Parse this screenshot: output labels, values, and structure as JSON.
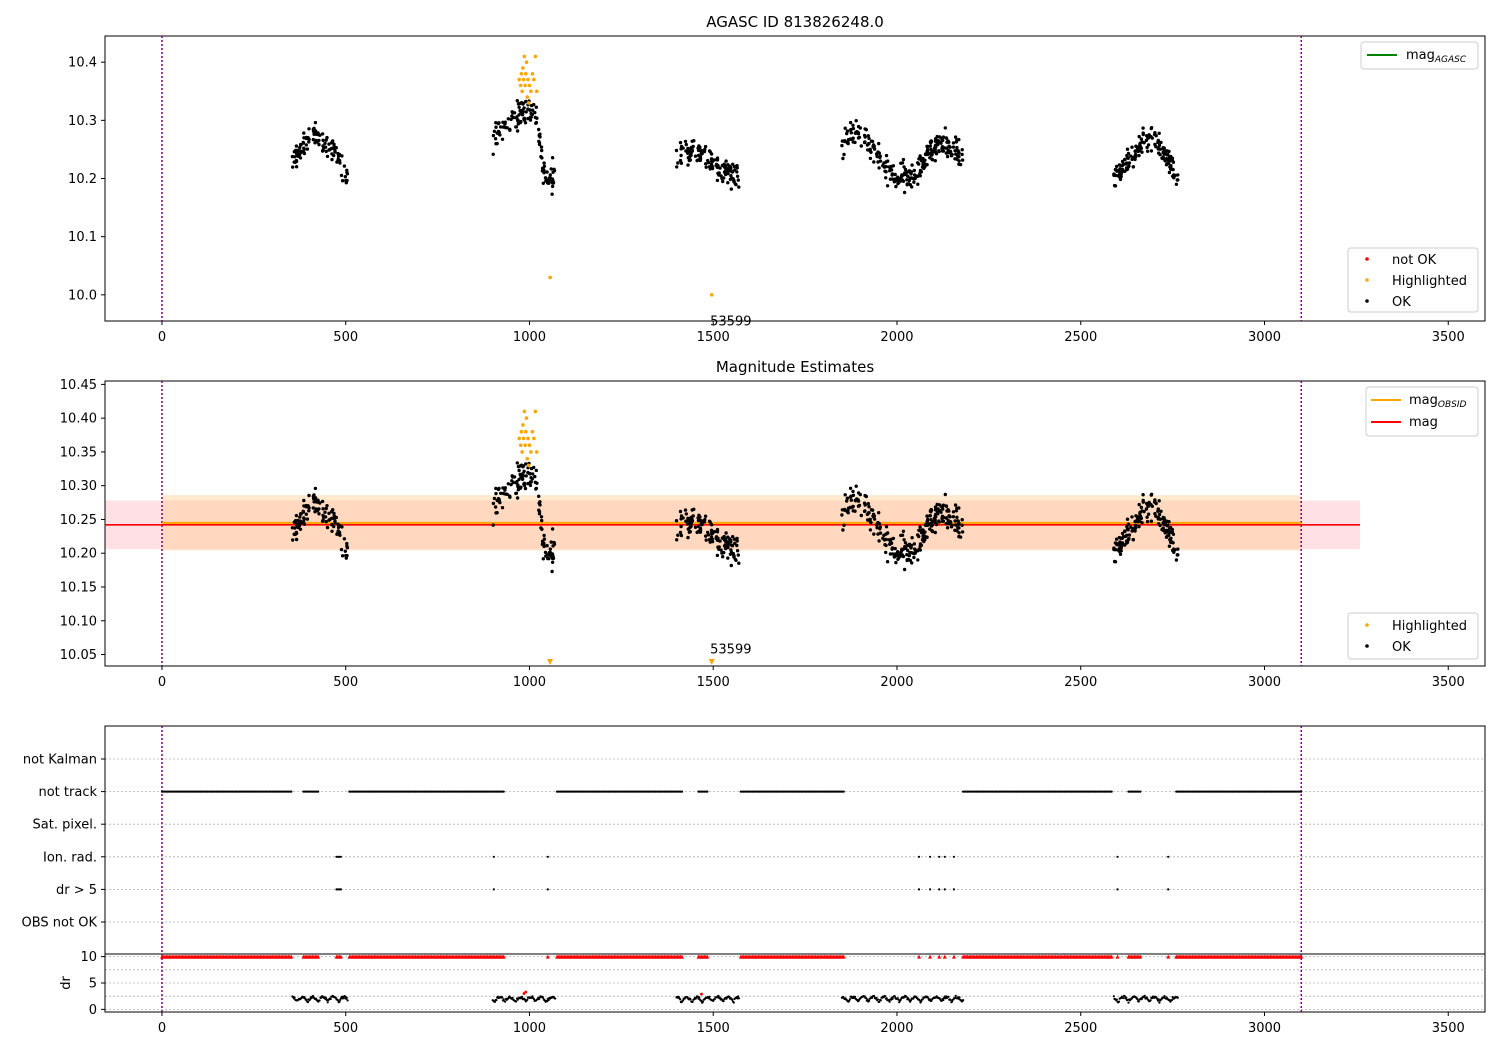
{
  "chart_data": [
    {
      "id": "agasc",
      "type": "scatter",
      "title": "AGASC ID 813826248.0",
      "xlim": [
        -155,
        3600
      ],
      "ylim": [
        9.955,
        10.445
      ],
      "xticks": [
        0,
        500,
        1000,
        1500,
        2000,
        2500,
        3000,
        3500
      ],
      "yticks": [
        10.0,
        10.1,
        10.2,
        10.3,
        10.4
      ],
      "ytick_labels": [
        "10.0",
        "10.1",
        "10.2",
        "10.3",
        "10.4"
      ],
      "vlines": [
        0,
        3100
      ],
      "vline_color": "#800080",
      "line_legend": {
        "placement": "top-right",
        "entries": [
          {
            "name": "mag",
            "sub": "AGASC",
            "color": "#008000"
          }
        ]
      },
      "point_legend": {
        "placement": "bottom-right",
        "entries": [
          {
            "name": "not OK",
            "color": "#ff0000"
          },
          {
            "name": "Highlighted",
            "color": "#ffa500"
          },
          {
            "name": "OK",
            "color": "#000000"
          }
        ]
      },
      "annotation": {
        "text": "53599",
        "x": 1497,
        "y": 9.975
      },
      "series": [
        {
          "role": "OK",
          "color": "#000000",
          "clusters": [
            {
              "x0": 355,
              "x1": 505,
              "knots": [
                [
                  355,
                  10.23
                ],
                [
                  380,
                  10.25
                ],
                [
                  410,
                  10.28
                ],
                [
                  440,
                  10.26
                ],
                [
                  470,
                  10.25
                ],
                [
                  490,
                  10.21
                ],
                [
                  505,
                  10.2
                ]
              ],
              "noise": 0.02,
              "n": 110
            },
            {
              "x0": 900,
              "x1": 1070,
              "knots": [
                [
                  900,
                  10.27
                ],
                [
                  940,
                  10.29
                ],
                [
                  975,
                  10.31
                ],
                [
                  1000,
                  10.32
                ],
                [
                  1020,
                  10.3
                ],
                [
                  1035,
                  10.22
                ],
                [
                  1050,
                  10.2
                ],
                [
                  1070,
                  10.21
                ]
              ],
              "noise": 0.025,
              "n": 130
            },
            {
              "x0": 1400,
              "x1": 1570,
              "knots": [
                [
                  1400,
                  10.24
                ],
                [
                  1440,
                  10.25
                ],
                [
                  1480,
                  10.24
                ],
                [
                  1510,
                  10.22
                ],
                [
                  1540,
                  10.21
                ],
                [
                  1570,
                  10.2
                ]
              ],
              "noise": 0.02,
              "n": 140
            },
            {
              "x0": 1850,
              "x1": 2180,
              "knots": [
                [
                  1850,
                  10.26
                ],
                [
                  1900,
                  10.28
                ],
                [
                  1950,
                  10.24
                ],
                [
                  1980,
                  10.21
                ],
                [
                  2030,
                  10.2
                ],
                [
                  2060,
                  10.21
                ],
                [
                  2090,
                  10.25
                ],
                [
                  2130,
                  10.26
                ],
                [
                  2180,
                  10.24
                ]
              ],
              "noise": 0.022,
              "n": 270
            },
            {
              "x0": 2590,
              "x1": 2765,
              "knots": [
                [
                  2590,
                  10.2
                ],
                [
                  2630,
                  10.23
                ],
                [
                  2670,
                  10.26
                ],
                [
                  2700,
                  10.27
                ],
                [
                  2730,
                  10.24
                ],
                [
                  2765,
                  10.2
                ]
              ],
              "noise": 0.022,
              "n": 150
            }
          ]
        },
        {
          "role": "Highlighted",
          "color": "#ffa500",
          "x": [
            972,
            976,
            978,
            980,
            982,
            984,
            986,
            988,
            990,
            992,
            994,
            996,
            998,
            1000,
            1004,
            1008,
            1012,
            1016,
            1020,
            1056,
            1496
          ],
          "y": [
            10.37,
            10.36,
            10.38,
            10.35,
            10.39,
            10.37,
            10.41,
            10.36,
            10.38,
            10.4,
            10.34,
            10.37,
            10.33,
            10.36,
            10.35,
            10.38,
            10.37,
            10.41,
            10.35,
            10.03,
            10.0
          ]
        }
      ]
    },
    {
      "id": "estimates",
      "type": "scatter",
      "title": "Magnitude Estimates",
      "xlim": [
        -155,
        3600
      ],
      "ylim": [
        10.033,
        10.455
      ],
      "xticks": [
        0,
        500,
        1000,
        1500,
        2000,
        2500,
        3000,
        3500
      ],
      "yticks": [
        10.05,
        10.1,
        10.15,
        10.2,
        10.25,
        10.3,
        10.35,
        10.4,
        10.45
      ],
      "ytick_labels": [
        "10.05",
        "10.10",
        "10.15",
        "10.20",
        "10.25",
        "10.30",
        "10.35",
        "10.40",
        "10.45"
      ],
      "vlines": [
        0,
        3100
      ],
      "vline_color": "#800080",
      "bands": [
        {
          "x0": -155,
          "x1": 3260,
          "y0": 10.206,
          "y1": 10.278,
          "color": "#ffe0e4"
        },
        {
          "x0": 0,
          "x1": 3100,
          "y0": 10.204,
          "y1": 10.286,
          "color": "#ffe9cf"
        },
        {
          "x0": 0,
          "x1": 3100,
          "y0": 10.206,
          "y1": 10.278,
          "color": "#ffd8bf"
        }
      ],
      "hlines": [
        {
          "name": "mag",
          "sub": "OBSID",
          "color": "#ffa500",
          "y": 10.245,
          "x0": 0,
          "x1": 3100,
          "width": 2
        },
        {
          "name": "mag",
          "color": "#ff0000",
          "y": 10.242,
          "x0": -155,
          "x1": 3260,
          "width": 1.6
        }
      ],
      "line_legend": {
        "placement": "top-right",
        "entries": [
          {
            "name": "mag",
            "sub": "OBSID",
            "color": "#ffa500"
          },
          {
            "name": "mag",
            "color": "#ff0000"
          }
        ]
      },
      "point_legend": {
        "placement": "bottom-right",
        "entries": [
          {
            "name": "Highlighted",
            "color": "#ffa500"
          },
          {
            "name": "OK",
            "color": "#000000"
          }
        ]
      },
      "annotation": {
        "text": "53599",
        "x": 1497,
        "y": 10.04
      },
      "offscale_markers": {
        "color": "#ffa500",
        "x": [
          1056,
          1496
        ]
      },
      "series": [
        {
          "role": "OK",
          "color": "#000000",
          "clusters": "same as agasc"
        },
        {
          "role": "Highlighted",
          "color": "#ffa500",
          "x": [
            972,
            976,
            978,
            980,
            982,
            984,
            986,
            988,
            990,
            992,
            994,
            996,
            998,
            1000,
            1004,
            1008,
            1012,
            1016,
            1020
          ],
          "y": [
            10.37,
            10.36,
            10.38,
            10.35,
            10.39,
            10.37,
            10.41,
            10.36,
            10.38,
            10.4,
            10.34,
            10.37,
            10.33,
            10.36,
            10.35,
            10.38,
            10.37,
            10.41,
            10.35
          ]
        }
      ]
    },
    {
      "id": "flags",
      "type": "scatter",
      "xlim": [
        -155,
        3600
      ],
      "rows": [
        "not Kalman",
        "not track",
        "Sat. pixel.",
        "Ion. rad.",
        "dr > 5",
        "OBS not OK"
      ],
      "vlines": [
        0,
        3100
      ],
      "vline_color": "#800080",
      "flag_segments": {
        "not track": [
          [
            0,
            355
          ],
          [
            385,
            425
          ],
          [
            510,
            930
          ],
          [
            1075,
            1415
          ],
          [
            1460,
            1485
          ],
          [
            1575,
            1855
          ],
          [
            2180,
            2585
          ],
          [
            2630,
            2665
          ],
          [
            2760,
            3100
          ]
        ],
        "Ion. rad.": [
          [
            475,
            490
          ]
        ],
        "dr > 5": [
          [
            475,
            490
          ]
        ]
      },
      "flag_points": {
        "Ion. rad.": [
          903,
          1050,
          2060,
          2090,
          2115,
          2130,
          2155,
          2600,
          2738
        ],
        "dr > 5": [
          903,
          1050,
          2060,
          2090,
          2115,
          2130,
          2155,
          2600,
          2738
        ]
      }
    },
    {
      "id": "dr",
      "type": "scatter",
      "ylabel": "dr",
      "xlim": [
        -155,
        3600
      ],
      "ylim": [
        -0.5,
        10.5
      ],
      "yticks": [
        0,
        5,
        10
      ],
      "ytick_labels": [
        "0",
        "5",
        "10"
      ],
      "xticks": [
        0,
        500,
        1000,
        1500,
        2000,
        2500,
        3000,
        3500
      ],
      "vlines": [
        0,
        3100
      ],
      "vline_color": "#800080",
      "capped": {
        "color": "#ff0000",
        "y": 10,
        "segments": [
          [
            0,
            355
          ],
          [
            385,
            425
          ],
          [
            475,
            490
          ],
          [
            510,
            930
          ],
          [
            1075,
            1415
          ],
          [
            1460,
            1485
          ],
          [
            1575,
            1855
          ],
          [
            2180,
            2585
          ],
          [
            2630,
            2665
          ],
          [
            2760,
            3100
          ]
        ],
        "points": [
          1050,
          2060,
          2090,
          2115,
          2130,
          2155,
          2600,
          2738
        ]
      },
      "scatter_ranges": [
        [
          355,
          505
        ],
        [
          900,
          1070
        ],
        [
          1400,
          1570
        ],
        [
          1850,
          2180
        ],
        [
          2590,
          2765
        ]
      ],
      "red_points": {
        "x": [
          985,
          990,
          1468
        ],
        "y": [
          3.0,
          3.3,
          2.9
        ]
      }
    }
  ]
}
